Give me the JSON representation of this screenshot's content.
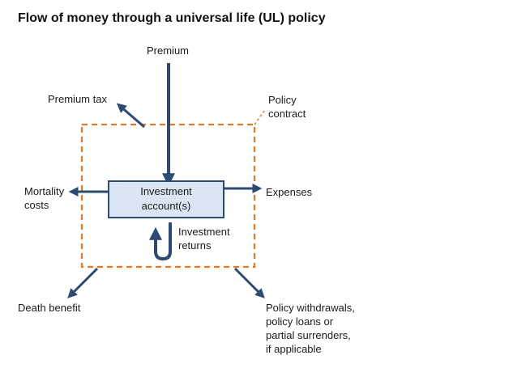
{
  "title": "Flow of money through a universal life (UL) policy",
  "labels": {
    "premium": "Premium",
    "premium_tax": "Premium tax",
    "policy_contract": [
      "Policy",
      "contract"
    ],
    "mortality_costs": [
      "Mortality",
      "costs"
    ],
    "investment_account": [
      "Investment",
      "account(s)"
    ],
    "expenses": "Expenses",
    "investment_returns": [
      "Investment",
      "returns"
    ],
    "death_benefit": "Death benefit",
    "policy_withdrawals": [
      "Policy withdrawals,",
      "policy loans or",
      "partial surrenders,",
      "if applicable"
    ]
  },
  "colors": {
    "arrow": "#2c4a72",
    "dashed_border": "#e07a2a",
    "box_fill": "#dbe6f4",
    "box_stroke": "#2c4a72",
    "text": "#1a1a1a"
  }
}
